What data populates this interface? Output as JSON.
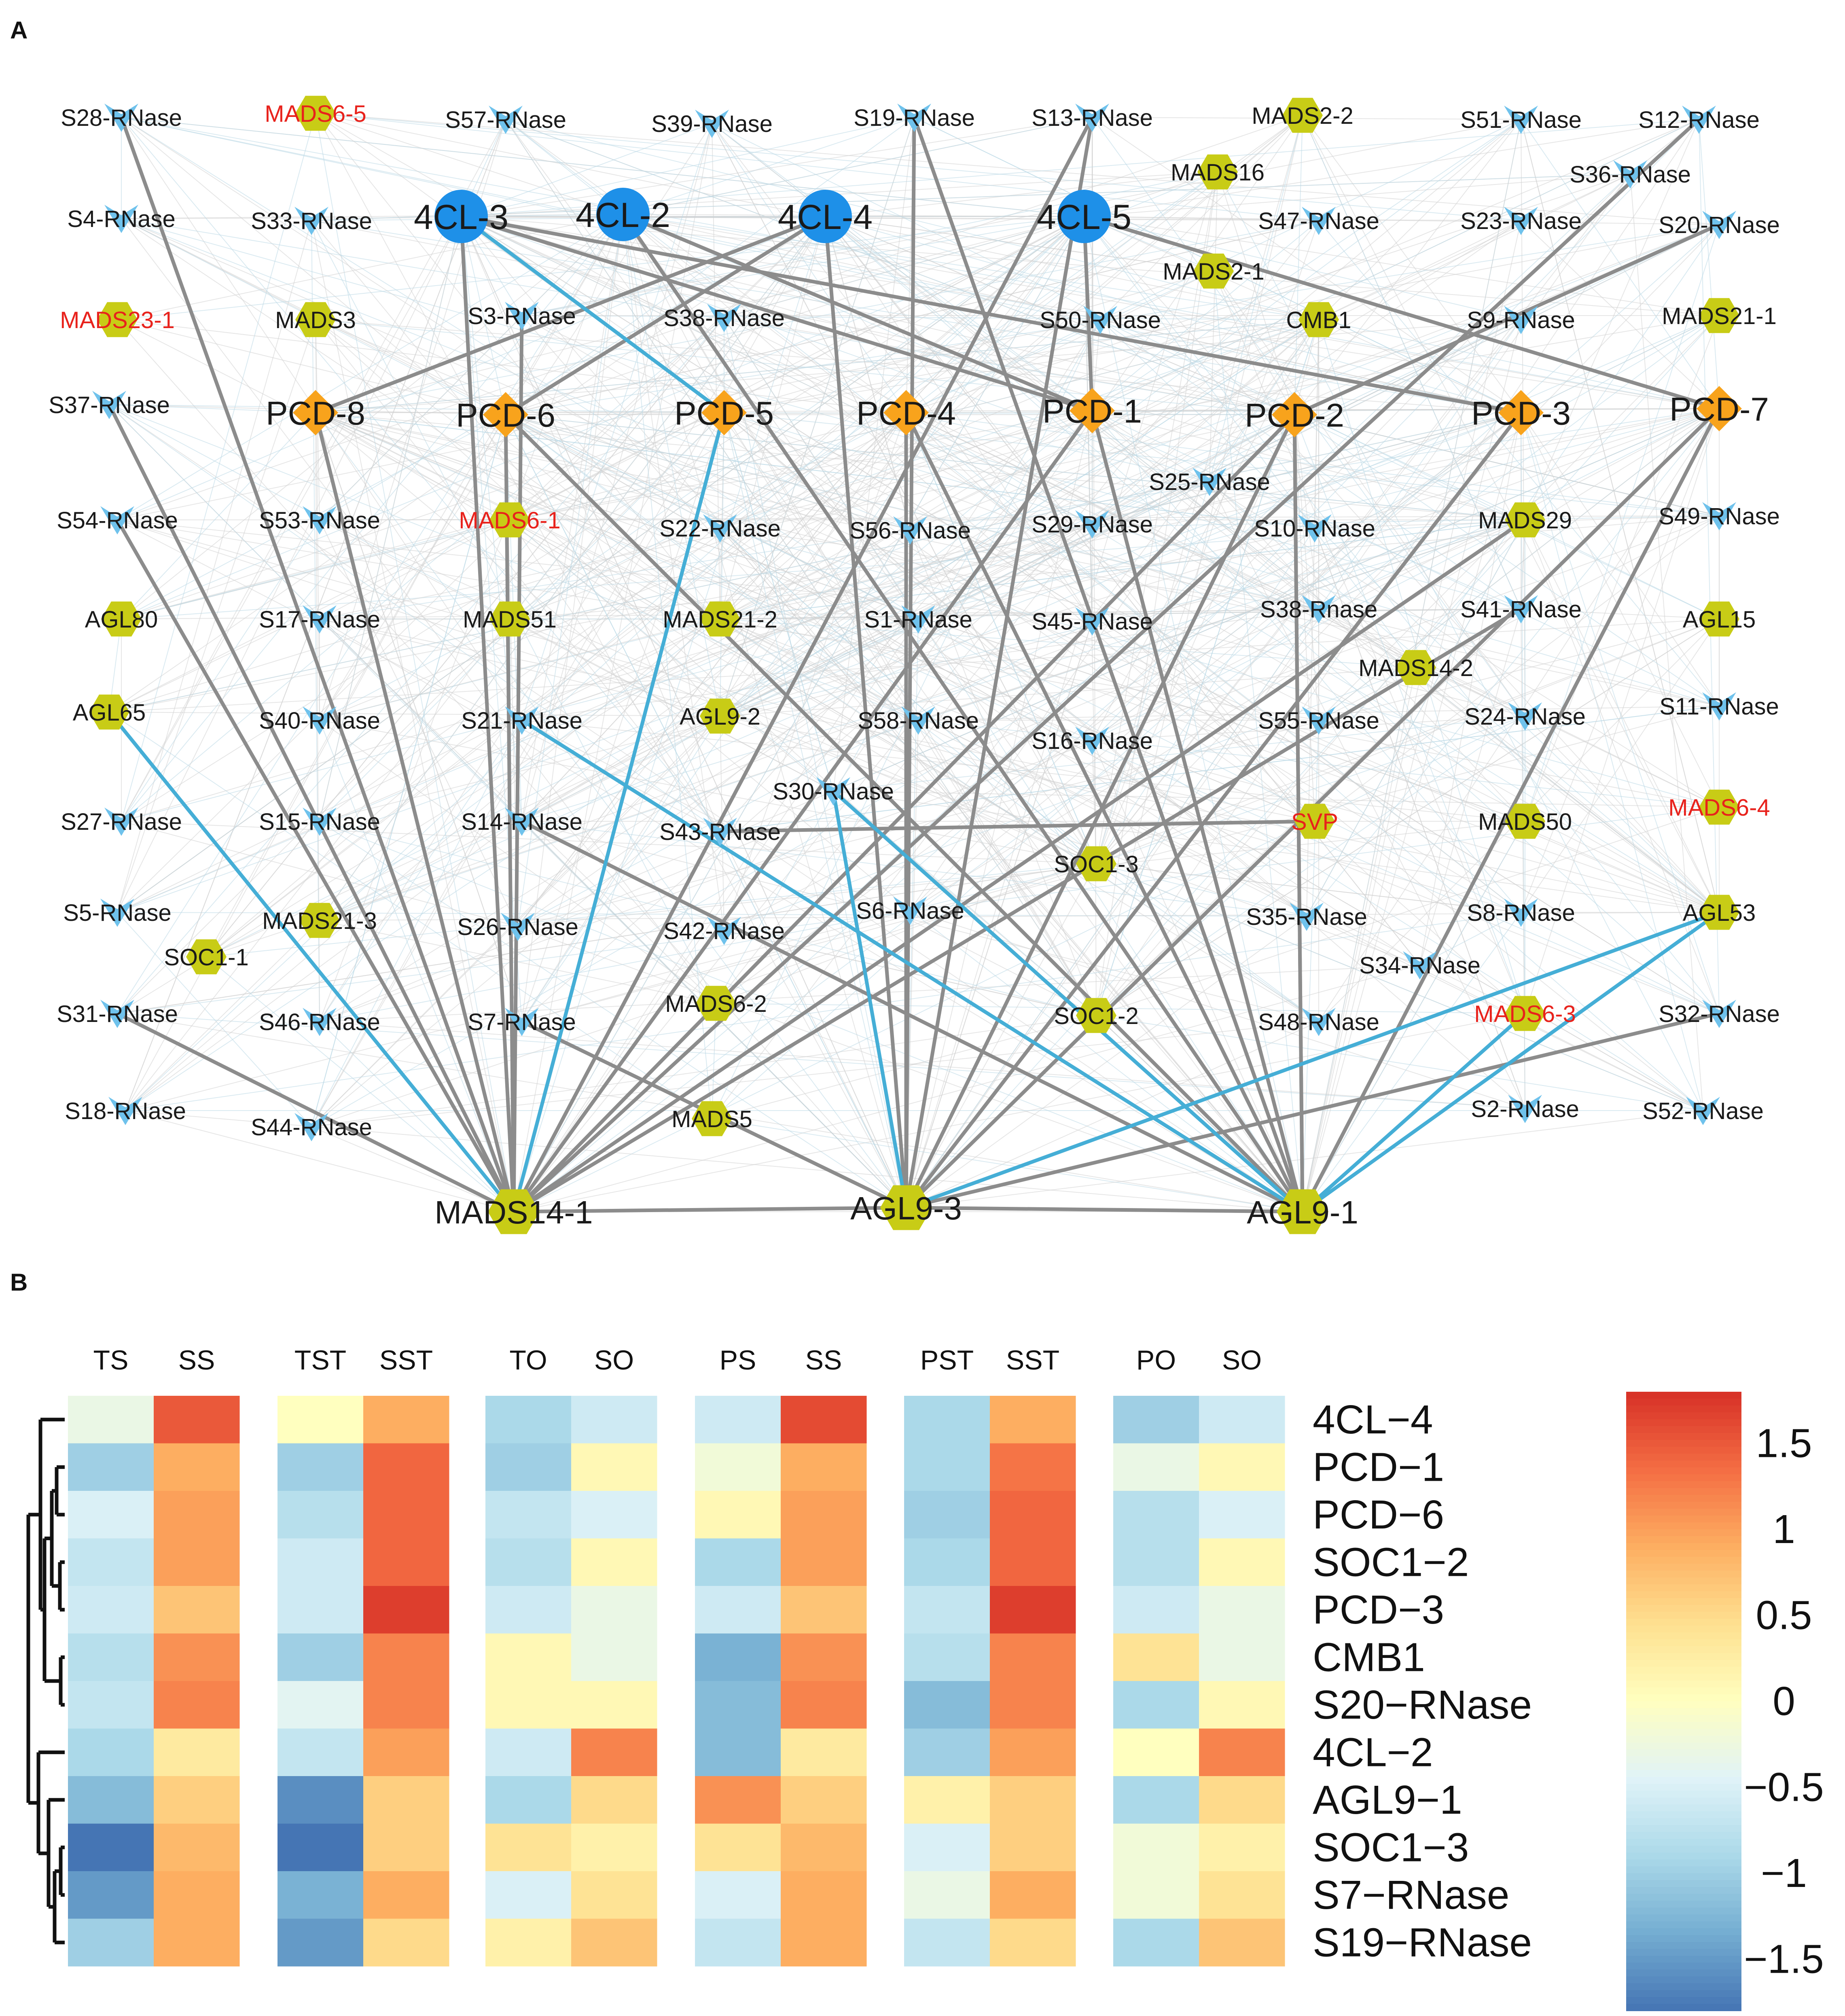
{
  "panel_a": {
    "label": "A",
    "colors": {
      "rnase": "#6fc2ec",
      "mads": "#c8cc16",
      "pcd": "#f8a31c",
      "cl": "#1e90e8",
      "red_label": "#e8221c",
      "label": "#1a1a1a",
      "edge_gray": "#8c8c8c",
      "edge_blue": "#45aed6",
      "bg_edge": "#bcd9e6"
    },
    "nodes": [
      {
        "id": "S28-RNase",
        "type": "rnase"
      },
      {
        "id": "MADS6-5",
        "type": "mads",
        "red": true
      },
      {
        "id": "S57-RNase",
        "type": "rnase"
      },
      {
        "id": "S39-RNase",
        "type": "rnase"
      },
      {
        "id": "S19-RNase",
        "type": "rnase"
      },
      {
        "id": "S13-RNase",
        "type": "rnase"
      },
      {
        "id": "MADS2-2",
        "type": "mads"
      },
      {
        "id": "S51-RNase",
        "type": "rnase"
      },
      {
        "id": "S12-RNase",
        "type": "rnase"
      },
      {
        "id": "MADS16",
        "type": "mads"
      },
      {
        "id": "S36-RNase",
        "type": "rnase"
      },
      {
        "id": "S4-RNase",
        "type": "rnase"
      },
      {
        "id": "S33-RNase",
        "type": "rnase"
      },
      {
        "id": "4CL-3",
        "type": "cl"
      },
      {
        "id": "4CL-2",
        "type": "cl"
      },
      {
        "id": "4CL-4",
        "type": "cl"
      },
      {
        "id": "4CL-5",
        "type": "cl"
      },
      {
        "id": "S47-RNase",
        "type": "rnase"
      },
      {
        "id": "S23-RNase",
        "type": "rnase"
      },
      {
        "id": "S20-RNase",
        "type": "rnase"
      },
      {
        "id": "MADS2-1",
        "type": "mads"
      },
      {
        "id": "MADS23-1",
        "type": "mads",
        "red": true
      },
      {
        "id": "MADS3",
        "type": "mads"
      },
      {
        "id": "S3-RNase",
        "type": "rnase"
      },
      {
        "id": "S38-RNase",
        "type": "rnase"
      },
      {
        "id": "S50-RNase",
        "type": "rnase"
      },
      {
        "id": "CMB1",
        "type": "mads"
      },
      {
        "id": "S9-RNase",
        "type": "rnase"
      },
      {
        "id": "MADS21-1",
        "type": "mads"
      },
      {
        "id": "S37-RNase",
        "type": "rnase"
      },
      {
        "id": "PCD-8",
        "type": "pcd"
      },
      {
        "id": "PCD-6",
        "type": "pcd"
      },
      {
        "id": "PCD-5",
        "type": "pcd"
      },
      {
        "id": "PCD-4",
        "type": "pcd"
      },
      {
        "id": "PCD-1",
        "type": "pcd"
      },
      {
        "id": "PCD-2",
        "type": "pcd"
      },
      {
        "id": "PCD-3",
        "type": "pcd"
      },
      {
        "id": "PCD-7",
        "type": "pcd"
      },
      {
        "id": "S25-RNase",
        "type": "rnase"
      },
      {
        "id": "S54-RNase",
        "type": "rnase"
      },
      {
        "id": "S53-RNase",
        "type": "rnase"
      },
      {
        "id": "MADS6-1",
        "type": "mads",
        "red": true
      },
      {
        "id": "S22-RNase",
        "type": "rnase"
      },
      {
        "id": "S56-RNase",
        "type": "rnase"
      },
      {
        "id": "S29-RNase",
        "type": "rnase"
      },
      {
        "id": "S10-RNase",
        "type": "rnase"
      },
      {
        "id": "MADS29",
        "type": "mads"
      },
      {
        "id": "S49-RNase",
        "type": "rnase"
      },
      {
        "id": "AGL80",
        "type": "mads"
      },
      {
        "id": "S17-RNase",
        "type": "rnase"
      },
      {
        "id": "MADS51",
        "type": "mads"
      },
      {
        "id": "MADS21-2",
        "type": "mads"
      },
      {
        "id": "S1-RNase",
        "type": "rnase"
      },
      {
        "id": "S45-RNase",
        "type": "rnase"
      },
      {
        "id": "S38-Rnase",
        "type": "rnase"
      },
      {
        "id": "S41-RNase",
        "type": "rnase"
      },
      {
        "id": "AGL15",
        "type": "mads"
      },
      {
        "id": "MADS14-2",
        "type": "mads"
      },
      {
        "id": "AGL65",
        "type": "mads"
      },
      {
        "id": "S40-RNase",
        "type": "rnase"
      },
      {
        "id": "S21-RNase",
        "type": "rnase"
      },
      {
        "id": "AGL9-2",
        "type": "mads"
      },
      {
        "id": "S58-RNase",
        "type": "rnase"
      },
      {
        "id": "S16-RNase",
        "type": "rnase"
      },
      {
        "id": "S55-RNase",
        "type": "rnase"
      },
      {
        "id": "S24-RNase",
        "type": "rnase"
      },
      {
        "id": "S11-RNase",
        "type": "rnase"
      },
      {
        "id": "S30-RNase",
        "type": "rnase"
      },
      {
        "id": "S27-RNase",
        "type": "rnase"
      },
      {
        "id": "S15-RNase",
        "type": "rnase"
      },
      {
        "id": "S14-RNase",
        "type": "rnase"
      },
      {
        "id": "S43-RNase",
        "type": "rnase"
      },
      {
        "id": "SVP",
        "type": "mads",
        "red": true
      },
      {
        "id": "MADS50",
        "type": "mads"
      },
      {
        "id": "MADS6-4",
        "type": "mads",
        "red": true
      },
      {
        "id": "SOC1-3",
        "type": "mads"
      },
      {
        "id": "S5-RNase",
        "type": "rnase"
      },
      {
        "id": "MADS21-3",
        "type": "mads"
      },
      {
        "id": "S26-RNase",
        "type": "rnase"
      },
      {
        "id": "S42-RNase",
        "type": "rnase"
      },
      {
        "id": "S6-RNase",
        "type": "rnase"
      },
      {
        "id": "S35-RNase",
        "type": "rnase"
      },
      {
        "id": "S8-RNase",
        "type": "rnase"
      },
      {
        "id": "AGL53",
        "type": "mads"
      },
      {
        "id": "SOC1-1",
        "type": "mads"
      },
      {
        "id": "S34-RNase",
        "type": "rnase"
      },
      {
        "id": "S31-RNase",
        "type": "rnase"
      },
      {
        "id": "S46-RNase",
        "type": "rnase"
      },
      {
        "id": "S7-RNase",
        "type": "rnase"
      },
      {
        "id": "MADS6-2",
        "type": "mads"
      },
      {
        "id": "SOC1-2",
        "type": "mads"
      },
      {
        "id": "S48-RNase",
        "type": "rnase"
      },
      {
        "id": "MADS6-3",
        "type": "mads",
        "red": true
      },
      {
        "id": "S32-RNase",
        "type": "rnase"
      },
      {
        "id": "S18-RNase",
        "type": "rnase"
      },
      {
        "id": "S44-RNase",
        "type": "rnase"
      },
      {
        "id": "MADS5",
        "type": "mads"
      },
      {
        "id": "S2-RNase",
        "type": "rnase"
      },
      {
        "id": "S52-RNase",
        "type": "rnase"
      },
      {
        "id": "MADS14-1",
        "type": "mads",
        "big": true
      },
      {
        "id": "AGL9-3",
        "type": "mads",
        "big": true
      },
      {
        "id": "AGL9-1",
        "type": "mads",
        "big": true
      }
    ],
    "edges_gray": [
      [
        "MADS14-1",
        "S28-RNase"
      ],
      [
        "MADS14-1",
        "S37-RNase"
      ],
      [
        "MADS14-1",
        "S54-RNase"
      ],
      [
        "MADS14-1",
        "4CL-3"
      ],
      [
        "MADS14-1",
        "S3-RNase"
      ],
      [
        "MADS14-1",
        "PCD-6"
      ],
      [
        "MADS14-1",
        "PCD-8"
      ],
      [
        "MADS14-1",
        "PCD-1"
      ],
      [
        "MADS14-1",
        "PCD-2"
      ],
      [
        "MADS14-1",
        "AGL9-3"
      ],
      [
        "MADS14-1",
        "S12-RNase"
      ],
      [
        "MADS14-1",
        "S41-RNase"
      ],
      [
        "MADS14-1",
        "MADS29"
      ],
      [
        "MADS14-1",
        "S13-RNase"
      ],
      [
        "MADS14-1",
        "S31-RNase"
      ],
      [
        "AGL9-3",
        "S19-RNase"
      ],
      [
        "AGL9-3",
        "4CL-4"
      ],
      [
        "AGL9-3",
        "PCD-4"
      ],
      [
        "AGL9-3",
        "PCD-2"
      ],
      [
        "AGL9-3",
        "PCD-3"
      ],
      [
        "AGL9-3",
        "PCD-7"
      ],
      [
        "AGL9-3",
        "AGL9-1"
      ],
      [
        "AGL9-3",
        "S7-RNase"
      ],
      [
        "AGL9-3",
        "S13-RNase"
      ],
      [
        "AGL9-3",
        "S32-RNase"
      ],
      [
        "AGL9-1",
        "4CL-2"
      ],
      [
        "AGL9-1",
        "PCD-6"
      ],
      [
        "AGL9-1",
        "PCD-4"
      ],
      [
        "AGL9-1",
        "PCD-1"
      ],
      [
        "AGL9-1",
        "PCD-2"
      ],
      [
        "AGL9-1",
        "PCD-7"
      ],
      [
        "AGL9-1",
        "S19-RNase"
      ],
      [
        "AGL9-1",
        "S14-RNase"
      ],
      [
        "4CL-3",
        "PCD-1"
      ],
      [
        "4CL-3",
        "PCD-3"
      ],
      [
        "4CL-2",
        "PCD-1"
      ],
      [
        "4CL-4",
        "PCD-8"
      ],
      [
        "4CL-4",
        "PCD-6"
      ],
      [
        "4CL-5",
        "PCD-1"
      ],
      [
        "4CL-5",
        "PCD-7"
      ],
      [
        "S20-RNase",
        "PCD-2"
      ],
      [
        "SVP",
        "S43-RNase"
      ],
      [
        "PCD-2",
        "AGL9-1"
      ]
    ],
    "edges_blue": [
      [
        "4CL-3",
        "PCD-5"
      ],
      [
        "MADS14-1",
        "AGL65"
      ],
      [
        "MADS14-1",
        "PCD-5"
      ],
      [
        "AGL9-3",
        "S30-RNase"
      ],
      [
        "AGL9-3",
        "AGL53"
      ],
      [
        "AGL9-1",
        "S21-RNase"
      ],
      [
        "AGL9-1",
        "S30-RNase"
      ],
      [
        "AGL9-1",
        "AGL53"
      ],
      [
        "AGL9-1",
        "MADS6-3"
      ]
    ]
  },
  "panel_b": {
    "label": "B",
    "groups": [
      {
        "cols": [
          "TS",
          "SS"
        ]
      },
      {
        "cols": [
          "TST",
          "SST"
        ]
      },
      {
        "cols": [
          "TO",
          "SO"
        ]
      },
      {
        "cols": [
          "PS",
          "SS"
        ]
      },
      {
        "cols": [
          "PST",
          "SST"
        ]
      },
      {
        "cols": [
          "PO",
          "SO"
        ]
      }
    ],
    "rows": [
      "4CL−4",
      "PCD−1",
      "PCD−6",
      "SOC1−2",
      "PCD−3",
      "CMB1",
      "S20−RNase",
      "4CL−2",
      "AGL9−1",
      "SOC1−3",
      "S7−RNase",
      "S19−RNase"
    ],
    "values": [
      [
        -0.3,
        1.5,
        0.0,
        0.9,
        -0.9,
        -0.6,
        -0.6,
        1.6,
        -0.9,
        0.9,
        -1.0,
        -0.6
      ],
      [
        -1.0,
        0.9,
        -1.0,
        1.4,
        -1.0,
        0.1,
        -0.2,
        0.9,
        -0.9,
        1.3,
        -0.3,
        0.1
      ],
      [
        -0.5,
        1.0,
        -0.8,
        1.4,
        -0.7,
        -0.5,
        0.1,
        1.0,
        -1.0,
        1.4,
        -0.8,
        -0.5
      ],
      [
        -0.7,
        1.0,
        -0.6,
        1.4,
        -0.8,
        0.1,
        -0.9,
        1.0,
        -0.9,
        1.4,
        -0.8,
        0.1
      ],
      [
        -0.6,
        0.7,
        -0.6,
        1.7,
        -0.6,
        -0.3,
        -0.6,
        0.7,
        -0.7,
        1.7,
        -0.6,
        -0.3
      ],
      [
        -0.8,
        1.1,
        -1.0,
        1.2,
        0.1,
        -0.3,
        -1.3,
        1.1,
        -0.8,
        1.2,
        0.4,
        -0.3
      ],
      [
        -0.7,
        1.2,
        -0.4,
        1.2,
        0.1,
        0.1,
        -1.2,
        1.2,
        -1.2,
        1.2,
        -0.9,
        0.1
      ],
      [
        -0.9,
        0.3,
        -0.7,
        1.0,
        -0.6,
        1.2,
        -1.2,
        0.3,
        -1.0,
        1.0,
        0.0,
        1.2
      ],
      [
        -1.2,
        0.6,
        -1.6,
        0.6,
        -0.9,
        0.5,
        1.1,
        0.6,
        0.2,
        0.6,
        -0.9,
        0.5
      ],
      [
        -1.8,
        0.8,
        -1.8,
        0.6,
        0.4,
        0.2,
        0.4,
        0.8,
        -0.5,
        0.6,
        -0.2,
        0.2
      ],
      [
        -1.5,
        0.9,
        -1.3,
        0.9,
        -0.5,
        0.4,
        -0.5,
        0.9,
        -0.3,
        0.9,
        -0.2,
        0.4
      ],
      [
        -1.0,
        0.9,
        -1.5,
        0.5,
        0.2,
        0.7,
        -0.7,
        0.9,
        -0.7,
        0.5,
        -0.9,
        0.7
      ]
    ],
    "legend": {
      "ticks": [
        "1.5",
        "1",
        "0.5",
        "0",
        "−0.5",
        "−1",
        "−1.5"
      ],
      "tick_values": [
        1.5,
        1,
        0.5,
        0,
        -0.5,
        -1,
        -1.5
      ],
      "range": [
        -1.8,
        1.8
      ]
    },
    "palette": [
      "#4575b4",
      "#74add1",
      "#abd9e9",
      "#e0f3f8",
      "#ffffbf",
      "#fee090",
      "#fdae61",
      "#f46d43",
      "#d73027"
    ]
  }
}
